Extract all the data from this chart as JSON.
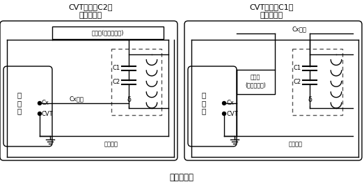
{
  "title_left1": "CVT（测量C2）",
  "title_left2": "接线示意图",
  "title_right1": "CVT（测量C1）",
  "title_right2": "接线示意图",
  "bottom_label": "实际接线图",
  "label_hv_left": "高压线(屏蔽和芯线)",
  "label_hv_right1": "高压线",
  "label_hv_right2": "(屏蔽和芯线)",
  "label_cx_wire_left": "Cx芯线",
  "label_cx_wire_right": "Cx芯线",
  "label_cx_top_right": "Cx芯线",
  "label_measure_gnd_left": "测量接地",
  "label_measure_gnd_right": "测量接地",
  "label_tester": "测\n试\n仪",
  "label_Cx": "Cx",
  "label_CVT": "CVT",
  "label_C1": "C1",
  "label_C2": "C2",
  "label_delta": "δ",
  "bg_color": "#ffffff",
  "line_color": "#000000",
  "dashed_color": "#555555",
  "text_color": "#000000",
  "fig_width": 5.23,
  "fig_height": 2.71,
  "dpi": 100
}
